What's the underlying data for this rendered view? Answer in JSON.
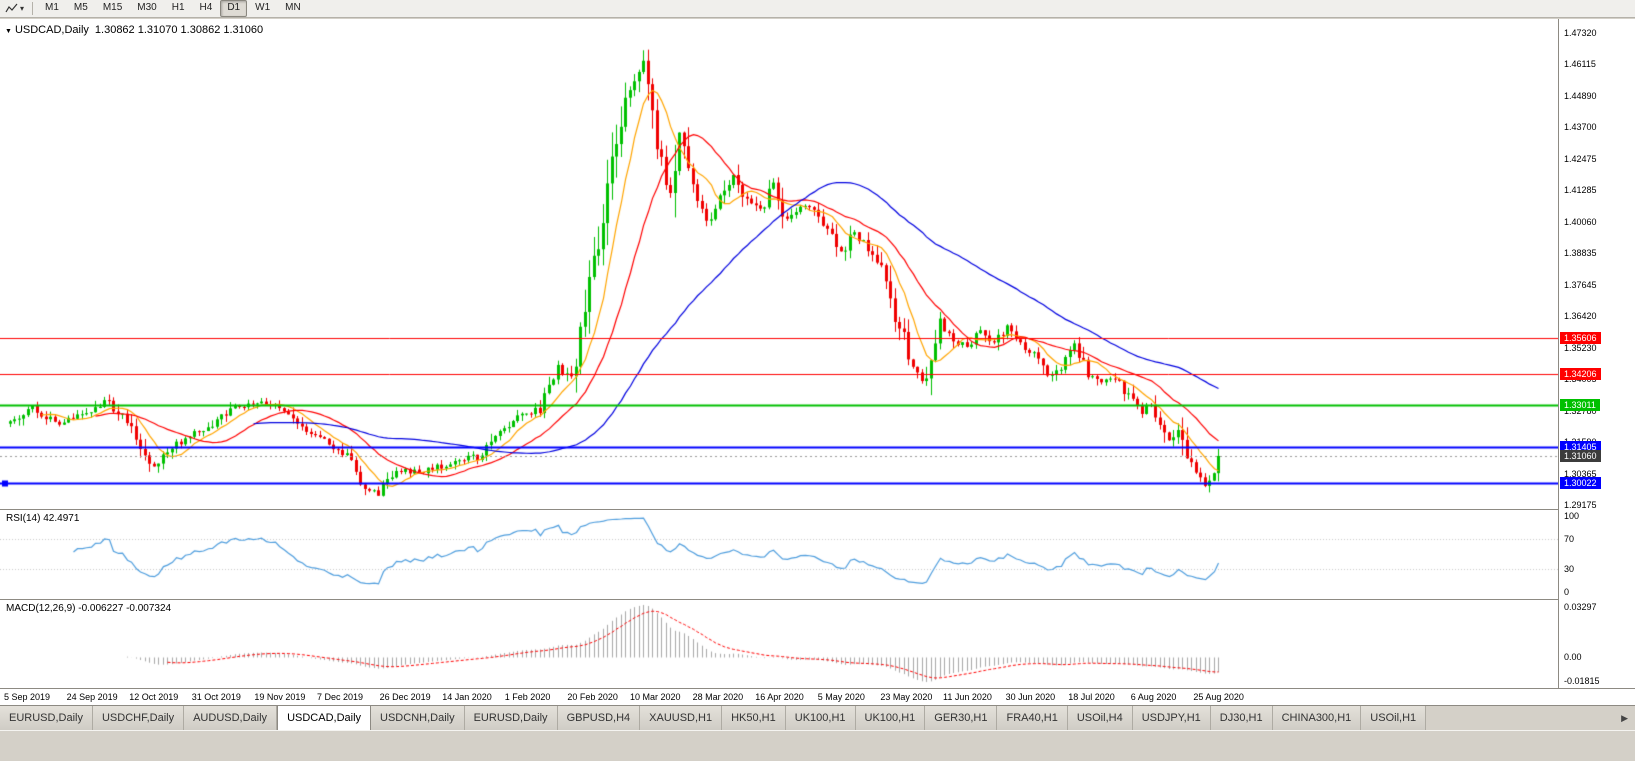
{
  "toolbar": {
    "caret_glyph": "▾",
    "timeframes": [
      {
        "label": "M1",
        "active": false
      },
      {
        "label": "M5",
        "active": false
      },
      {
        "label": "M15",
        "active": false
      },
      {
        "label": "M30",
        "active": false
      },
      {
        "label": "H1",
        "active": false
      },
      {
        "label": "H4",
        "active": false
      },
      {
        "label": "D1",
        "active": true
      },
      {
        "label": "W1",
        "active": false
      },
      {
        "label": "MN",
        "active": false
      }
    ]
  },
  "chart": {
    "dropdown_glyph": "▼",
    "symbol_period": "USDCAD,Daily",
    "ohlc_text": "1.30862 1.31070 1.30862 1.31060"
  },
  "chart_data": {
    "type": "candlestick",
    "symbol": "USDCAD",
    "period": "Daily",
    "ohlc_current": {
      "open": 1.30862,
      "high": 1.3107,
      "low": 1.30862,
      "close": 1.3106
    },
    "price_axis_ticks": [
      "1.47320",
      "1.46115",
      "1.44890",
      "1.43700",
      "1.42475",
      "1.41285",
      "1.40060",
      "1.38835",
      "1.37645",
      "1.36420",
      "1.35230",
      "1.34005",
      "1.32780",
      "1.31590",
      "1.30365",
      "1.29175"
    ],
    "x_axis_labels": [
      "5 Sep 2019",
      "24 Sep 2019",
      "12 Oct 2019",
      "31 Oct 2019",
      "19 Nov 2019",
      "7 Dec 2019",
      "26 Dec 2019",
      "14 Jan 2020",
      "1 Feb 2020",
      "20 Feb 2020",
      "10 Mar 2020",
      "28 Mar 2020",
      "16 Apr 2020",
      "5 May 2020",
      "23 May 2020",
      "11 Jun 2020",
      "30 Jun 2020",
      "18 Jul 2020",
      "6 Aug 2020",
      "25 Aug 2020"
    ],
    "horizontal_lines": [
      {
        "price": 1.35606,
        "label": "1.35606",
        "color": "#ff0000",
        "width": 1,
        "handle": false
      },
      {
        "price": 1.34206,
        "label": "1.34206",
        "color": "#ff0000",
        "width": 1,
        "handle": false
      },
      {
        "price": 1.33011,
        "label": "1.33011",
        "color": "#00c000",
        "width": 2,
        "handle": false
      },
      {
        "price": 1.31405,
        "label": "1.31405",
        "color": "#0000ff",
        "width": 2,
        "handle": false
      },
      {
        "price": 1.30022,
        "label": "1.30022",
        "color": "#0000ff",
        "width": 2,
        "handle": true
      }
    ],
    "current_price": {
      "value": 1.3106,
      "label": "1.31060",
      "tag_bg": "#3c3c3c",
      "line_color": "#9a9a9a"
    },
    "candles": {
      "up_color": "#00c000",
      "down_color": "#f00000",
      "high_extreme": 1.4668,
      "low_extreme": 1.295,
      "close_path_anchors": [
        [
          0,
          1.323
        ],
        [
          5,
          1.33
        ],
        [
          10,
          1.323
        ],
        [
          16,
          1.326
        ],
        [
          21,
          1.332
        ],
        [
          26,
          1.324
        ],
        [
          32,
          1.306
        ],
        [
          38,
          1.3165
        ],
        [
          44,
          1.3215
        ],
        [
          51,
          1.33
        ],
        [
          57,
          1.331
        ],
        [
          62,
          1.328
        ],
        [
          67,
          1.318
        ],
        [
          71,
          1.316
        ],
        [
          75,
          1.31
        ],
        [
          79,
          1.298
        ],
        [
          82,
          1.2962
        ],
        [
          86,
          1.305
        ],
        [
          92,
          1.3045
        ],
        [
          99,
          1.3085
        ],
        [
          104,
          1.3105
        ],
        [
          109,
          1.32
        ],
        [
          114,
          1.326
        ],
        [
          118,
          1.329
        ],
        [
          122,
          1.345
        ],
        [
          125,
          1.339
        ],
        [
          128,
          1.366
        ],
        [
          131,
          1.392
        ],
        [
          134,
          1.425
        ],
        [
          137,
          1.45
        ],
        [
          139,
          1.456
        ],
        [
          141,
          1.463
        ],
        [
          143,
          1.438
        ],
        [
          145,
          1.423
        ],
        [
          147,
          1.412
        ],
        [
          149,
          1.435
        ],
        [
          152,
          1.414
        ],
        [
          155,
          1.401
        ],
        [
          158,
          1.409
        ],
        [
          161,
          1.418
        ],
        [
          164,
          1.409
        ],
        [
          167,
          1.405
        ],
        [
          170,
          1.415
        ],
        [
          173,
          1.401
        ],
        [
          176,
          1.407
        ],
        [
          179,
          1.405
        ],
        [
          182,
          1.397
        ],
        [
          185,
          1.389
        ],
        [
          188,
          1.397
        ],
        [
          191,
          1.39
        ],
        [
          194,
          1.382
        ],
        [
          197,
          1.365
        ],
        [
          200,
          1.35
        ],
        [
          203,
          1.339
        ],
        [
          205,
          1.346
        ],
        [
          207,
          1.363
        ],
        [
          210,
          1.355
        ],
        [
          213,
          1.353
        ],
        [
          216,
          1.358
        ],
        [
          219,
          1.354
        ],
        [
          222,
          1.36
        ],
        [
          225,
          1.3545
        ],
        [
          228,
          1.3495
        ],
        [
          231,
          1.341
        ],
        [
          234,
          1.345
        ],
        [
          237,
          1.353
        ],
        [
          240,
          1.342
        ],
        [
          243,
          1.338
        ],
        [
          246,
          1.3405
        ],
        [
          249,
          1.334
        ],
        [
          252,
          1.327
        ],
        [
          254,
          1.331
        ],
        [
          256,
          1.324
        ],
        [
          258,
          1.317
        ],
        [
          260,
          1.321
        ],
        [
          262,
          1.309
        ],
        [
          264,
          1.304
        ],
        [
          266,
          1.2995
        ],
        [
          268,
          1.306
        ],
        [
          269,
          1.3106
        ]
      ]
    },
    "moving_averages": [
      {
        "period": 8,
        "color": "#ffa500"
      },
      {
        "period": 20,
        "color": "#ff0000"
      },
      {
        "period": 55,
        "color": "#0000e0"
      }
    ],
    "indicators": {
      "rsi": {
        "label": "RSI(14) 42.4971",
        "period": 14,
        "current": 42.4971,
        "levels": [
          70,
          30
        ],
        "axis_labels": [
          "100",
          "70",
          "30",
          "0"
        ],
        "color": "#4f9ede"
      },
      "macd": {
        "label": "MACD(12,26,9) -0.006227 -0.007324",
        "fast": 12,
        "slow": 26,
        "signal": 9,
        "values": [
          -0.006227,
          -0.007324
        ],
        "axis_labels": [
          "0.03297",
          "0.00",
          "-0.01815"
        ],
        "hist_color": "#a8a8a8",
        "signal_color": "#ff0000"
      }
    }
  },
  "bottom_tabs": {
    "scroll_icon": "▶",
    "items": [
      {
        "label": "EURUSD,Daily",
        "active": false
      },
      {
        "label": "USDCHF,Daily",
        "active": false
      },
      {
        "label": "AUDUSD,Daily",
        "active": false
      },
      {
        "label": "USDCAD,Daily",
        "active": true
      },
      {
        "label": "USDCNH,Daily",
        "active": false
      },
      {
        "label": "EURUSD,Daily",
        "active": false
      },
      {
        "label": "GBPUSD,H4",
        "active": false
      },
      {
        "label": "XAUUSD,H1",
        "active": false
      },
      {
        "label": "HK50,H1",
        "active": false
      },
      {
        "label": "UK100,H1",
        "active": false
      },
      {
        "label": "UK100,H1",
        "active": false
      },
      {
        "label": "GER30,H1",
        "active": false
      },
      {
        "label": "FRA40,H1",
        "active": false
      },
      {
        "label": "USOil,H4",
        "active": false
      },
      {
        "label": "USDJPY,H1",
        "active": false
      },
      {
        "label": "DJ30,H1",
        "active": false
      },
      {
        "label": "CHINA300,H1",
        "active": false
      },
      {
        "label": "USOil,H1",
        "active": false
      }
    ]
  }
}
